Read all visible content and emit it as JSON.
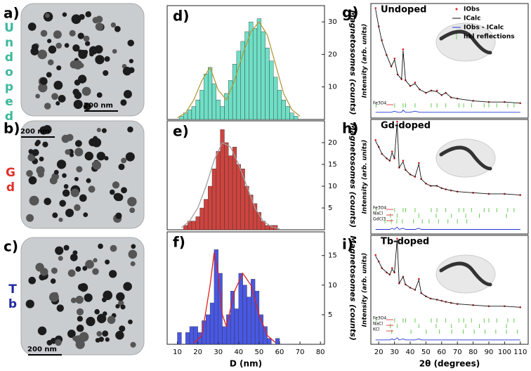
{
  "panels": [
    {
      "label": "a)",
      "sample": "Undoped",
      "scale_bar": "200 nm",
      "color": "#3db89b"
    },
    {
      "label": "b)",
      "sample": "Gd",
      "scale_bar": "200 nm",
      "color": "#e0302a"
    },
    {
      "label": "c)",
      "sample": "Tb",
      "scale_bar": "200 nm",
      "color": "#1f2aa0"
    }
  ],
  "chart_data": [
    {
      "type": "histogram",
      "label": "d)",
      "bins": [
        11,
        13,
        15,
        17,
        19,
        21,
        23,
        25,
        27,
        29,
        31,
        33,
        35,
        37,
        39,
        41,
        43,
        45,
        47,
        49,
        51,
        53,
        55,
        57,
        59,
        61,
        63,
        65,
        67,
        69
      ],
      "values": [
        1,
        2,
        3,
        4,
        6,
        9,
        14,
        16,
        11,
        6,
        4,
        8,
        12,
        17,
        21,
        24,
        27,
        30,
        28,
        31,
        27,
        22,
        18,
        13,
        9,
        6,
        4,
        2,
        1
      ],
      "color": "#5fdcc0",
      "xlim": [
        5,
        82
      ],
      "ylim": [
        0,
        35
      ],
      "yticks": [
        10,
        20,
        30
      ],
      "ylabel": "Magnetosomes (counts)",
      "fit": {
        "color": "#b39a3c",
        "x": [
          10,
          14,
          18,
          22,
          26,
          30,
          34,
          38,
          42,
          46,
          50,
          54,
          58,
          62,
          66,
          70
        ],
        "values": [
          0.5,
          2,
          6,
          12,
          16,
          9,
          6,
          12,
          20,
          27,
          30,
          26,
          17,
          8,
          3,
          1
        ]
      }
    },
    {
      "type": "histogram",
      "label": "e)",
      "bins": [
        13,
        15,
        17,
        19,
        21,
        23,
        25,
        27,
        29,
        31,
        33,
        35,
        37,
        39,
        41,
        43,
        45,
        47,
        49,
        51,
        53,
        55,
        57,
        59
      ],
      "values": [
        1,
        2,
        2,
        3,
        5,
        7,
        10,
        14,
        18,
        23,
        20,
        17,
        19,
        15,
        14,
        10,
        8,
        6,
        4,
        2,
        1,
        1,
        1
      ],
      "color": "#c8302a",
      "xlim": [
        5,
        82
      ],
      "ylim": [
        0,
        25
      ],
      "yticks": [
        5,
        10,
        15,
        20
      ],
      "ylabel": "Magnetosomes (counts)",
      "fit": {
        "color": "#a0a0a0",
        "x": [
          12,
          16,
          20,
          24,
          28,
          32,
          36,
          40,
          44,
          48,
          52,
          56,
          60
        ],
        "values": [
          0.5,
          2,
          5,
          10,
          16,
          20,
          19,
          15,
          10,
          5,
          2,
          0.7,
          0.2
        ]
      }
    },
    {
      "type": "histogram",
      "label": "f)",
      "bins": [
        10,
        12,
        14,
        16,
        18,
        20,
        22,
        24,
        26,
        28,
        30,
        32,
        34,
        36,
        38,
        40,
        42,
        44,
        46,
        48,
        50,
        52,
        54,
        56,
        58,
        60
      ],
      "values": [
        2,
        0,
        2,
        3,
        3,
        2,
        4,
        5,
        7,
        16,
        12,
        3,
        5,
        9,
        6,
        12,
        10,
        8,
        11,
        9,
        5,
        3,
        1,
        0,
        1
      ],
      "color": "#3546e0",
      "xlim": [
        5,
        82
      ],
      "ylim": [
        0,
        19
      ],
      "yticks": [
        5,
        10,
        15
      ],
      "xticks": [
        10,
        20,
        30,
        40,
        50,
        60,
        70,
        80
      ],
      "xlabel": "D (nm)",
      "ylabel": "Magnetosomes (counts)",
      "fit": {
        "color": "#e02020",
        "x": [
          18,
          22,
          26,
          28,
          30,
          32,
          34,
          38,
          42,
          46,
          50,
          54,
          58
        ],
        "values": [
          0.2,
          1.5,
          10,
          15.5,
          12,
          5,
          3,
          9,
          12,
          10,
          5,
          1.5,
          0.3
        ]
      }
    },
    {
      "type": "xrd",
      "label": "g)",
      "title": "Undoped",
      "xlim": [
        15,
        115
      ],
      "ylim": [
        0,
        100
      ],
      "ylabel": "Intensity (arb. units)",
      "x": [
        18,
        20,
        22,
        25,
        28,
        30.1,
        32,
        34.5,
        35.5,
        37,
        40,
        43.1,
        46,
        50,
        53.4,
        57,
        60,
        62.6,
        66,
        70,
        80,
        90,
        100,
        110
      ],
      "series": [
        {
          "name": "IObs",
          "color": "#d82020",
          "values": [
            96,
            80,
            68,
            55,
            45,
            52,
            38,
            34,
            60,
            33,
            28,
            31,
            25,
            22,
            24,
            24,
            20,
            22,
            18,
            17,
            15,
            14,
            14,
            13
          ]
        },
        {
          "name": "ICalc",
          "color": "#111111",
          "values": [
            95,
            80,
            67,
            55,
            45,
            51,
            38,
            34,
            59,
            33,
            28,
            30,
            25,
            22,
            24,
            23,
            20,
            22,
            18,
            17,
            15,
            14,
            14,
            13
          ]
        },
        {
          "name": "IObs - ICalc",
          "color": "#2035d0",
          "values": [
            5,
            5,
            5,
            5,
            5,
            6,
            5,
            5,
            7,
            5,
            5,
            6,
            5,
            5,
            5,
            5,
            5,
            5,
            5,
            5,
            5,
            5,
            5,
            5
          ]
        }
      ],
      "reflection_legend": "hkl reflections",
      "reflections": [
        {
          "name": "Fe3O4",
          "color": "#66cc55",
          "positions": [
            18.3,
            30.1,
            35.5,
            37.1,
            43.1,
            53.4,
            57,
            62.6,
            71,
            74,
            79,
            87,
            90,
            95,
            102,
            106
          ]
        }
      ]
    },
    {
      "type": "xrd",
      "label": "h)",
      "title": "Gd-doped",
      "xlim": [
        15,
        115
      ],
      "ylim": [
        0,
        100
      ],
      "ylabel": "Intensity (arb. units)",
      "x": [
        18,
        20,
        22,
        25,
        27,
        28.5,
        30,
        31.7,
        33,
        35.5,
        37,
        40,
        43.1,
        45.5,
        47,
        50,
        53,
        57,
        60,
        62.6,
        66,
        70,
        80,
        90,
        100,
        110
      ],
      "series": [
        {
          "color": "#d82020",
          "values": [
            82,
            76,
            70,
            66,
            64,
            72,
            66,
            98,
            58,
            64,
            56,
            52,
            50,
            62,
            48,
            44,
            42,
            42,
            40,
            39,
            38,
            37,
            36,
            35,
            35,
            34
          ]
        },
        {
          "color": "#111111",
          "values": [
            81,
            76,
            70,
            66,
            64,
            71,
            66,
            97,
            58,
            63,
            56,
            52,
            50,
            61,
            48,
            44,
            42,
            42,
            40,
            39,
            38,
            37,
            36,
            35,
            35,
            34
          ]
        },
        {
          "color": "#2035d0",
          "values": [
            4,
            4,
            4,
            4,
            4,
            5,
            4,
            6,
            4,
            5,
            4,
            4,
            4,
            5,
            4,
            4,
            4,
            4,
            4,
            4,
            4,
            4,
            4,
            4,
            4,
            4
          ]
        }
      ],
      "reflections": [
        {
          "name": "Fe3O4",
          "color": "#66cc55",
          "positions": [
            18.3,
            30.1,
            35.5,
            37.1,
            43.1,
            53.4,
            57,
            62.6,
            71,
            74,
            79,
            87,
            90,
            95,
            102,
            106
          ]
        },
        {
          "name": "NaCl",
          "color": "#66cc55",
          "positions": [
            27.4,
            31.7,
            45.5,
            56.5,
            66.2,
            75.3,
            84,
            101.2
          ]
        },
        {
          "name": "GdCl3",
          "color": "#66cc55",
          "positions": [
            24,
            28,
            31.5,
            35,
            42,
            47.7,
            52,
            58,
            64,
            70,
            76
          ]
        }
      ]
    },
    {
      "type": "xrd",
      "label": "i)",
      "title": "Tb-doped",
      "xlim": [
        15,
        115
      ],
      "ylim": [
        0,
        100
      ],
      "ylabel": "Intensity (arb. units)",
      "xticks": [
        20,
        30,
        40,
        50,
        60,
        70,
        80,
        90,
        100,
        110
      ],
      "xlabel": "2θ (degrees)",
      "x": [
        18,
        20,
        22,
        25,
        27,
        28.5,
        30,
        31.7,
        33,
        35.5,
        37,
        40,
        43.1,
        45.5,
        47,
        50,
        53,
        57,
        60,
        62.6,
        66,
        70,
        80,
        90,
        100,
        110
      ],
      "series": [
        {
          "color": "#d82020",
          "values": [
            82,
            76,
            70,
            66,
            64,
            70,
            66,
            97,
            56,
            62,
            55,
            52,
            50,
            60,
            47,
            44,
            42,
            41,
            40,
            39,
            38,
            37,
            36,
            35,
            35,
            34
          ]
        },
        {
          "color": "#111111",
          "values": [
            81,
            76,
            70,
            66,
            64,
            69,
            66,
            96,
            56,
            62,
            55,
            52,
            50,
            59,
            47,
            44,
            42,
            41,
            40,
            39,
            38,
            37,
            36,
            35,
            35,
            34
          ]
        },
        {
          "color": "#2035d0",
          "values": [
            4,
            4,
            4,
            4,
            4,
            5,
            4,
            6,
            4,
            5,
            4,
            4,
            4,
            5,
            4,
            4,
            4,
            4,
            4,
            4,
            4,
            4,
            4,
            4,
            4,
            4
          ]
        }
      ],
      "reflections": [
        {
          "name": "Fe3O4",
          "color": "#66cc55",
          "positions": [
            18.3,
            30.1,
            35.5,
            37.1,
            43.1,
            53.4,
            57,
            62.6,
            71,
            74,
            79,
            87,
            90,
            95,
            102,
            106
          ]
        },
        {
          "name": "NaCl",
          "color": "#66cc55",
          "positions": [
            27.4,
            31.7,
            45.5,
            56.5,
            66.2,
            75.3,
            84,
            101.2
          ]
        },
        {
          "name": "KCl",
          "color": "#66cc55",
          "positions": [
            28.3,
            40.5,
            50.2,
            58.6,
            66.4,
            73.7,
            80.7,
            87.6,
            94.4,
            101.2,
            108.1
          ]
        }
      ]
    }
  ]
}
